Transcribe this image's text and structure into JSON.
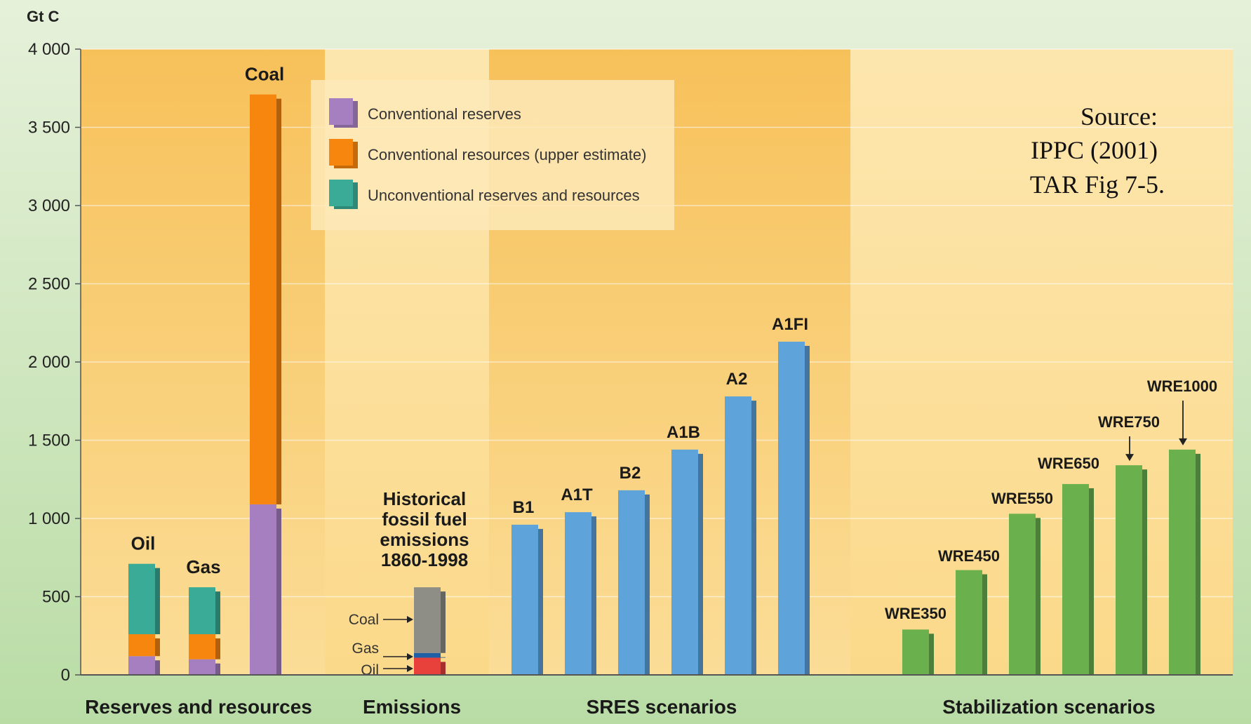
{
  "chart_data": {
    "type": "bar",
    "ylabel": "Gt C",
    "ylim": [
      0,
      4000
    ],
    "y_ticks": [
      "0",
      "500",
      "1 000",
      "1 500",
      "2 000",
      "2 500",
      "3 000",
      "3 500",
      "4 000"
    ],
    "y_tick_values": [
      0,
      500,
      1000,
      1500,
      2000,
      2500,
      3000,
      3500,
      4000
    ],
    "groups": [
      "Reserves and resources",
      "Emissions",
      "SRES scenarios",
      "Stabilization scenarios"
    ],
    "legend": [
      {
        "label": "Conventional reserves",
        "color": "#a57fbf"
      },
      {
        "label": "Conventional resources (upper estimate)",
        "color": "#f7860f"
      },
      {
        "label": "Unconventional reserves and resources",
        "color": "#3aab96"
      }
    ],
    "reserves": [
      {
        "label": "Oil",
        "conventional_reserves": 120,
        "conventional_resources": 140,
        "unconventional": 450
      },
      {
        "label": "Gas",
        "conventional_reserves": 100,
        "conventional_resources": 160,
        "unconventional": 300
      },
      {
        "label": "Coal",
        "conventional_reserves": 1090,
        "conventional_resources": 2620,
        "unconventional": 0
      }
    ],
    "emissions": {
      "title_lines": [
        "Historical",
        "fossil fuel",
        "emissions",
        "1860-1998"
      ],
      "components": [
        {
          "label": "Oil",
          "value": 110,
          "color": "#e8413c"
        },
        {
          "label": "Gas",
          "value": 30,
          "color": "#1f5fa8"
        },
        {
          "label": "Coal",
          "value": 420,
          "color": "#8e8e86"
        }
      ]
    },
    "sres": [
      {
        "label": "B1",
        "value": 960
      },
      {
        "label": "A1T",
        "value": 1040
      },
      {
        "label": "B2",
        "value": 1180
      },
      {
        "label": "A1B",
        "value": 1440
      },
      {
        "label": "A2",
        "value": 1780
      },
      {
        "label": "A1FI",
        "value": 2130
      }
    ],
    "stabilization": [
      {
        "label": "WRE350",
        "value": 290
      },
      {
        "label": "WRE450",
        "value": 670
      },
      {
        "label": "WRE550",
        "value": 1030
      },
      {
        "label": "WRE650",
        "value": 1220
      },
      {
        "label": "WRE750",
        "value": 1340
      },
      {
        "label": "WRE1000",
        "value": 1440
      }
    ],
    "colors": {
      "sres": "#5fa3db",
      "stabilization": "#6ab04c",
      "background_outer": "#cfe6c0",
      "background_panel": "#fbd98c"
    }
  },
  "source_note": [
    "Source:",
    "IPPC (2001)",
    "TAR Fig 7-5."
  ]
}
